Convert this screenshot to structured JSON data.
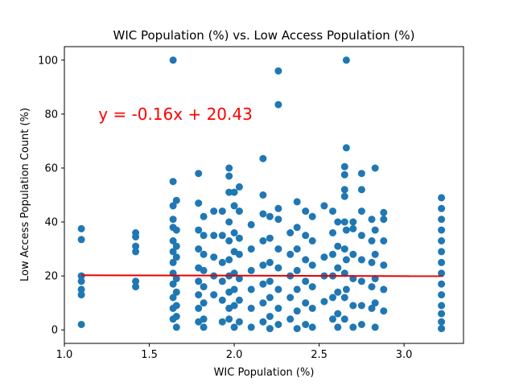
{
  "chart_data": {
    "type": "scatter",
    "title": "WIC Population (%) vs. Low Access Population (%)",
    "xlabel": "WIC Population (%)",
    "ylabel": "Low Access Population Count (%)",
    "xlim": [
      1.0,
      3.35
    ],
    "ylim": [
      -5,
      105
    ],
    "xticks": [
      1.0,
      1.5,
      2.0,
      2.5,
      3.0
    ],
    "xtick_labels": [
      "1.0",
      "1.5",
      "2.0",
      "2.5",
      "3.0"
    ],
    "yticks": [
      0,
      20,
      40,
      60,
      80,
      100
    ],
    "ytick_labels": [
      "0",
      "20",
      "40",
      "60",
      "80",
      "100"
    ],
    "grid": false,
    "legend": "none",
    "marker_color": "#1f77b4",
    "line_color": "#e60000",
    "annotation": {
      "text": "y = -0.16x + 20.43",
      "x": 1.2,
      "y": 80,
      "color": "#ff0000"
    },
    "regression": {
      "slope": -0.16,
      "intercept": 20.43,
      "x_range": [
        1.1,
        3.23
      ]
    },
    "series": [
      {
        "points": [
          [
            1.1,
            37.5
          ],
          [
            1.1,
            33.5
          ],
          [
            1.1,
            20.0
          ],
          [
            1.1,
            18.0
          ],
          [
            1.1,
            15.0
          ],
          [
            1.1,
            13.0
          ],
          [
            1.1,
            2.0
          ],
          [
            1.42,
            36.0
          ],
          [
            1.42,
            34.5
          ],
          [
            1.42,
            31.0
          ],
          [
            1.42,
            29.0
          ],
          [
            1.42,
            18.0
          ],
          [
            1.42,
            16.0
          ],
          [
            1.64,
            100.0
          ],
          [
            1.64,
            55.0
          ],
          [
            1.64,
            46.0
          ],
          [
            1.64,
            41.0
          ],
          [
            1.64,
            38.0
          ],
          [
            1.64,
            33.0
          ],
          [
            1.64,
            29.0
          ],
          [
            1.64,
            25.0
          ],
          [
            1.64,
            21.0
          ],
          [
            1.64,
            17.0
          ],
          [
            1.64,
            12.0
          ],
          [
            1.64,
            8.0
          ],
          [
            1.64,
            4.0
          ],
          [
            1.66,
            48.0
          ],
          [
            1.66,
            37.0
          ],
          [
            1.66,
            31.0
          ],
          [
            1.66,
            27.0
          ],
          [
            1.66,
            19.0
          ],
          [
            1.66,
            14.0
          ],
          [
            1.66,
            9.0
          ],
          [
            1.66,
            5.0
          ],
          [
            1.66,
            1.0
          ],
          [
            1.79,
            58.0
          ],
          [
            1.79,
            47.0
          ],
          [
            1.79,
            37.0
          ],
          [
            1.79,
            30.0
          ],
          [
            1.79,
            23.0
          ],
          [
            1.79,
            18.0
          ],
          [
            1.79,
            13.0
          ],
          [
            1.79,
            8.0
          ],
          [
            1.79,
            3.0
          ],
          [
            1.82,
            42.0
          ],
          [
            1.82,
            35.0
          ],
          [
            1.82,
            28.0
          ],
          [
            1.82,
            22.0
          ],
          [
            1.82,
            16.0
          ],
          [
            1.82,
            10.0
          ],
          [
            1.82,
            4.0
          ],
          [
            1.82,
            1.0
          ],
          [
            1.88,
            44.0
          ],
          [
            1.88,
            35.0
          ],
          [
            1.88,
            27.0
          ],
          [
            1.88,
            20.0
          ],
          [
            1.88,
            13.0
          ],
          [
            1.93,
            44.0
          ],
          [
            1.93,
            35.0
          ],
          [
            1.93,
            25.0
          ],
          [
            1.93,
            18.0
          ],
          [
            1.93,
            11.0
          ],
          [
            1.93,
            3.0
          ],
          [
            1.97,
            60.0
          ],
          [
            1.97,
            57.0
          ],
          [
            1.97,
            51.0
          ],
          [
            1.97,
            40.0
          ],
          [
            1.97,
            33.0
          ],
          [
            1.97,
            26.0
          ],
          [
            1.97,
            20.0
          ],
          [
            1.97,
            14.0
          ],
          [
            1.97,
            8.0
          ],
          [
            1.97,
            4.0
          ],
          [
            2.0,
            51.0
          ],
          [
            2.0,
            46.0
          ],
          [
            2.0,
            36.0
          ],
          [
            2.0,
            29.0
          ],
          [
            2.0,
            21.0
          ],
          [
            2.0,
            15.0
          ],
          [
            2.0,
            9.0
          ],
          [
            2.0,
            1.0
          ],
          [
            2.03,
            53.0
          ],
          [
            2.03,
            44.0
          ],
          [
            2.03,
            34.0
          ],
          [
            2.03,
            28.0
          ],
          [
            2.03,
            19.0
          ],
          [
            2.03,
            11.0
          ],
          [
            2.03,
            3.0
          ],
          [
            2.1,
            39.0
          ],
          [
            2.1,
            30.0
          ],
          [
            2.1,
            22.0
          ],
          [
            2.1,
            15.0
          ],
          [
            2.1,
            8.0
          ],
          [
            2.1,
            1.0
          ],
          [
            2.17,
            63.5
          ],
          [
            2.17,
            50.0
          ],
          [
            2.17,
            43.0
          ],
          [
            2.17,
            33.0
          ],
          [
            2.17,
            24.0
          ],
          [
            2.17,
            17.0
          ],
          [
            2.17,
            10.0
          ],
          [
            2.17,
            3.0
          ],
          [
            2.21,
            42.0
          ],
          [
            2.21,
            34.0
          ],
          [
            2.21,
            25.0
          ],
          [
            2.21,
            18.0
          ],
          [
            2.21,
            12.0
          ],
          [
            2.21,
            5.0
          ],
          [
            2.21,
            0.5
          ],
          [
            2.26,
            96.0
          ],
          [
            2.26,
            83.5
          ],
          [
            2.26,
            45.0
          ],
          [
            2.26,
            41.0
          ],
          [
            2.26,
            30.0
          ],
          [
            2.26,
            23.0
          ],
          [
            2.26,
            15.0
          ],
          [
            2.26,
            8.0
          ],
          [
            2.26,
            2.0
          ],
          [
            2.33,
            36.0
          ],
          [
            2.33,
            28.0
          ],
          [
            2.33,
            20.0
          ],
          [
            2.33,
            12.0
          ],
          [
            2.33,
            4.0
          ],
          [
            2.37,
            47.5
          ],
          [
            2.37,
            38.0
          ],
          [
            2.37,
            30.0
          ],
          [
            2.37,
            22.0
          ],
          [
            2.37,
            15.0
          ],
          [
            2.37,
            7.0
          ],
          [
            2.37,
            0.5
          ],
          [
            2.42,
            44.0
          ],
          [
            2.42,
            35.0
          ],
          [
            2.42,
            26.0
          ],
          [
            2.42,
            18.0
          ],
          [
            2.42,
            10.0
          ],
          [
            2.42,
            2.0
          ],
          [
            2.46,
            42.0
          ],
          [
            2.46,
            33.0
          ],
          [
            2.46,
            24.0
          ],
          [
            2.46,
            16.0
          ],
          [
            2.46,
            8.0
          ],
          [
            2.46,
            1.0
          ],
          [
            2.53,
            46.0
          ],
          [
            2.53,
            27.0
          ],
          [
            2.53,
            20.0
          ],
          [
            2.53,
            10.5
          ],
          [
            2.58,
            44.0
          ],
          [
            2.58,
            36.0
          ],
          [
            2.58,
            28.0
          ],
          [
            2.58,
            20.0
          ],
          [
            2.58,
            12.0
          ],
          [
            2.58,
            4.0
          ],
          [
            2.61,
            40.0
          ],
          [
            2.61,
            31.0
          ],
          [
            2.61,
            23.0
          ],
          [
            2.61,
            14.0
          ],
          [
            2.61,
            6.0
          ],
          [
            2.61,
            1.0
          ],
          [
            2.65,
            60.5
          ],
          [
            2.65,
            57.5
          ],
          [
            2.65,
            52.0
          ],
          [
            2.65,
            49.5
          ],
          [
            2.65,
            40.0
          ],
          [
            2.65,
            30.0
          ],
          [
            2.65,
            21.0
          ],
          [
            2.65,
            12.0
          ],
          [
            2.65,
            4.0
          ],
          [
            2.66,
            100.0
          ],
          [
            2.66,
            67.5
          ],
          [
            2.66,
            37.0
          ],
          [
            2.66,
            26.0
          ],
          [
            2.66,
            15.0
          ],
          [
            2.7,
            40.0
          ],
          [
            2.7,
            37.5
          ],
          [
            2.7,
            28.0
          ],
          [
            2.7,
            19.0
          ],
          [
            2.7,
            9.0
          ],
          [
            2.7,
            1.0
          ],
          [
            2.75,
            58.0
          ],
          [
            2.75,
            52.0
          ],
          [
            2.75,
            44.0
          ],
          [
            2.75,
            35.0
          ],
          [
            2.75,
            26.0
          ],
          [
            2.75,
            18.0
          ],
          [
            2.75,
            9.0
          ],
          [
            2.75,
            2.0
          ],
          [
            2.81,
            41.0
          ],
          [
            2.81,
            33.0
          ],
          [
            2.81,
            25.0
          ],
          [
            2.81,
            16.0
          ],
          [
            2.81,
            8.0
          ],
          [
            2.83,
            60.0
          ],
          [
            2.83,
            37.0
          ],
          [
            2.83,
            28.0
          ],
          [
            2.83,
            19.0
          ],
          [
            2.83,
            10.0
          ],
          [
            2.83,
            1.0
          ],
          [
            2.88,
            43.5
          ],
          [
            2.88,
            41.0
          ],
          [
            2.88,
            33.0
          ],
          [
            2.88,
            24.0
          ],
          [
            2.88,
            15.0
          ],
          [
            2.88,
            7.0
          ],
          [
            3.22,
            49.0
          ],
          [
            3.22,
            45.0
          ],
          [
            3.22,
            41.0
          ],
          [
            3.22,
            37.0
          ],
          [
            3.22,
            33.0
          ],
          [
            3.22,
            29.0
          ],
          [
            3.22,
            25.0
          ],
          [
            3.22,
            21.0
          ],
          [
            3.22,
            17.0
          ],
          [
            3.22,
            13.0
          ],
          [
            3.22,
            9.0
          ],
          [
            3.22,
            6.0
          ],
          [
            3.22,
            3.0
          ],
          [
            3.22,
            0.5
          ]
        ]
      }
    ]
  }
}
